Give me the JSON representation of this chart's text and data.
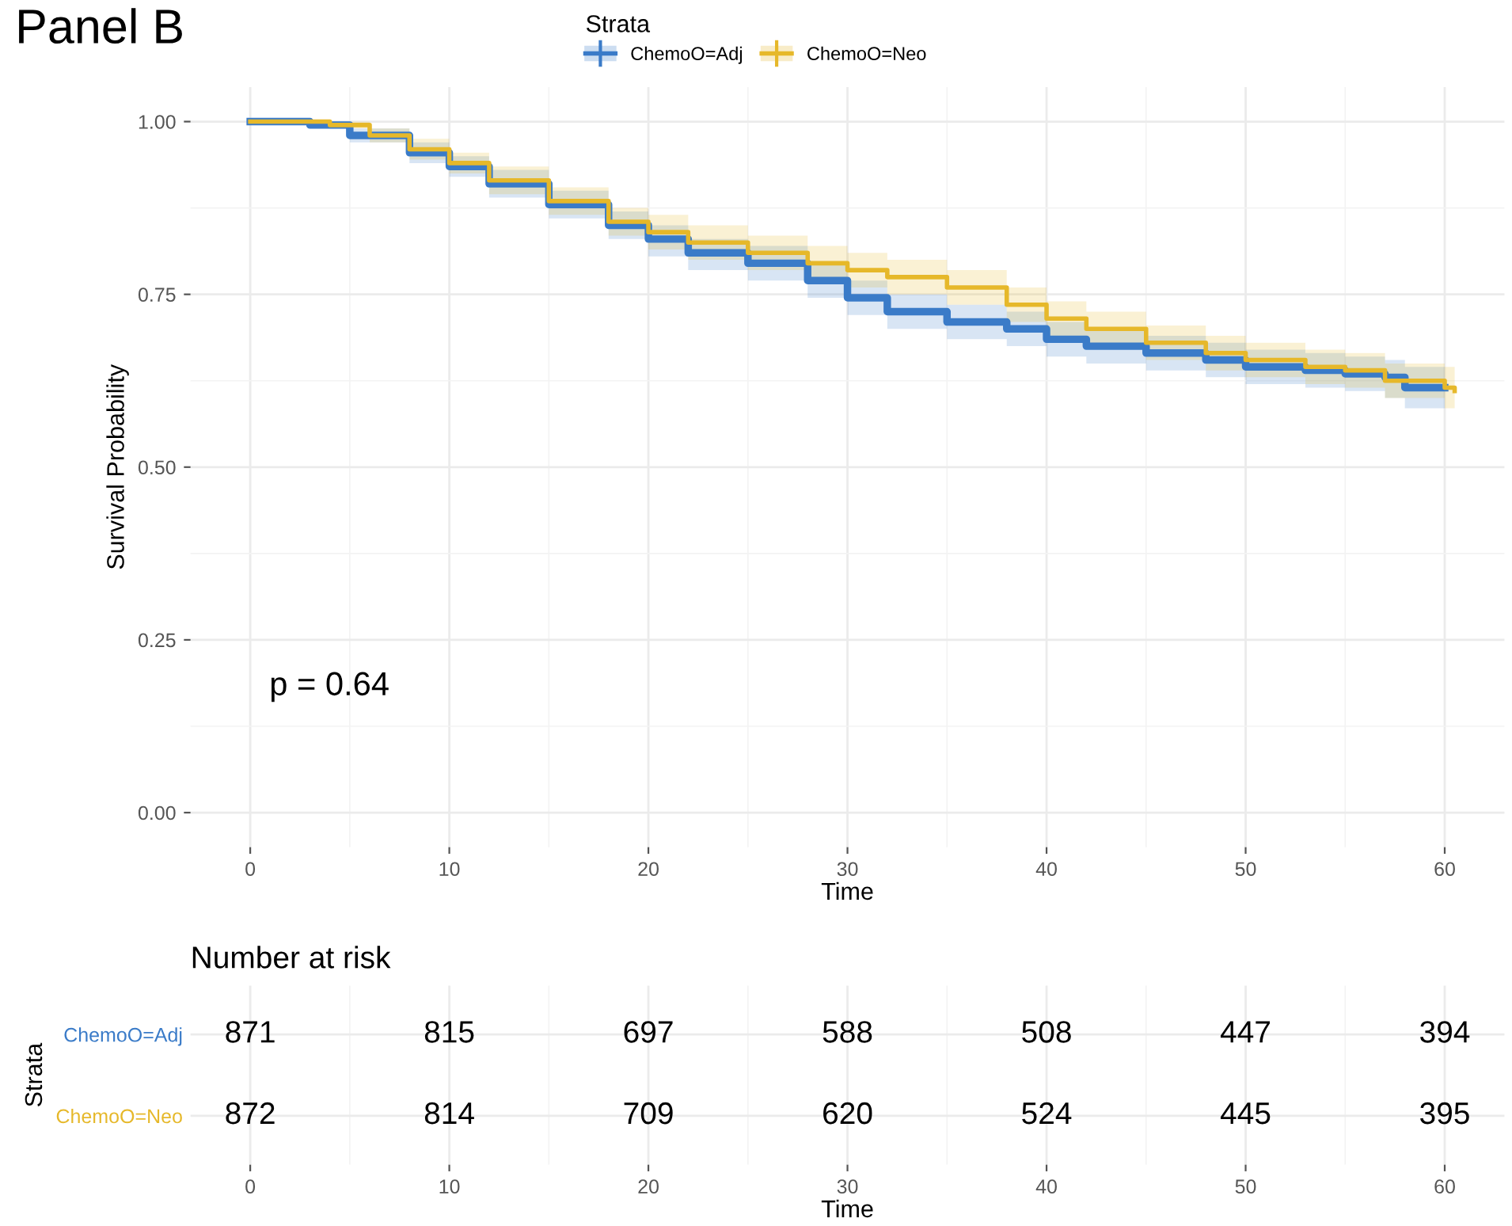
{
  "chart_data": [
    {
      "type": "step",
      "title": "Panel B",
      "xlabel": "Time",
      "ylabel": "Survival Probability",
      "legend_title": "Strata",
      "legend": "top",
      "grid": true,
      "xlim": [
        -3,
        63
      ],
      "xticks": [
        0,
        10,
        20,
        30,
        40,
        50,
        60
      ],
      "ylim": [
        -0.05,
        1.05
      ],
      "yticks": [
        {
          "value": 0,
          "label": "0.00"
        },
        {
          "value": 0.25,
          "label": "0.25"
        },
        {
          "value": 0.5,
          "label": "0.50"
        },
        {
          "value": 0.75,
          "label": "0.75"
        },
        {
          "value": 1,
          "label": "1.00"
        }
      ],
      "annotations": [
        "p = 0.64"
      ],
      "series": [
        {
          "name": "ChemoO=Adj",
          "color": "#3a7bc8",
          "x": [
            0,
            3,
            5,
            8,
            10,
            12,
            15,
            18,
            20,
            22,
            25,
            28,
            30,
            32,
            35,
            38,
            40,
            42,
            45,
            48,
            50,
            53,
            55,
            57,
            58,
            60
          ],
          "values": [
            1.0,
            0.995,
            0.98,
            0.955,
            0.935,
            0.91,
            0.88,
            0.85,
            0.83,
            0.81,
            0.795,
            0.77,
            0.745,
            0.725,
            0.71,
            0.7,
            0.685,
            0.675,
            0.665,
            0.655,
            0.645,
            0.64,
            0.635,
            0.63,
            0.615,
            0.615
          ],
          "lower": [
            1.0,
            0.99,
            0.97,
            0.94,
            0.92,
            0.89,
            0.86,
            0.83,
            0.805,
            0.785,
            0.77,
            0.745,
            0.72,
            0.7,
            0.685,
            0.675,
            0.66,
            0.65,
            0.64,
            0.63,
            0.62,
            0.615,
            0.61,
            0.6,
            0.585,
            0.585
          ],
          "upper": [
            1.0,
            1.0,
            0.99,
            0.97,
            0.95,
            0.93,
            0.9,
            0.87,
            0.85,
            0.83,
            0.82,
            0.795,
            0.77,
            0.75,
            0.735,
            0.725,
            0.71,
            0.7,
            0.69,
            0.68,
            0.67,
            0.665,
            0.66,
            0.655,
            0.645,
            0.645
          ]
        },
        {
          "name": "ChemoO=Neo",
          "color": "#e6b82a",
          "x": [
            0,
            4,
            6,
            8,
            10,
            12,
            15,
            18,
            20,
            22,
            25,
            28,
            30,
            32,
            35,
            38,
            40,
            42,
            45,
            48,
            50,
            53,
            55,
            57,
            60,
            60.5
          ],
          "values": [
            1.0,
            0.995,
            0.98,
            0.96,
            0.94,
            0.915,
            0.885,
            0.855,
            0.84,
            0.825,
            0.81,
            0.795,
            0.785,
            0.775,
            0.76,
            0.735,
            0.715,
            0.7,
            0.68,
            0.665,
            0.655,
            0.645,
            0.64,
            0.625,
            0.615,
            0.61
          ],
          "lower": [
            1.0,
            0.99,
            0.97,
            0.945,
            0.925,
            0.895,
            0.865,
            0.835,
            0.815,
            0.8,
            0.785,
            0.77,
            0.76,
            0.75,
            0.735,
            0.71,
            0.69,
            0.675,
            0.655,
            0.64,
            0.63,
            0.62,
            0.615,
            0.6,
            0.585,
            0.58
          ],
          "upper": [
            1.0,
            1.0,
            0.99,
            0.975,
            0.955,
            0.935,
            0.905,
            0.875,
            0.865,
            0.85,
            0.835,
            0.82,
            0.81,
            0.8,
            0.785,
            0.76,
            0.74,
            0.725,
            0.705,
            0.69,
            0.68,
            0.67,
            0.665,
            0.65,
            0.645,
            0.64
          ]
        }
      ]
    },
    {
      "type": "heatmap",
      "title": "Number at risk",
      "xlabel": "Time",
      "ylabel": "Strata",
      "data_labels": true,
      "grid": true,
      "categories": [
        "0",
        "10",
        "20",
        "30",
        "40",
        "50",
        "60"
      ],
      "y_categories": [
        "ChemoO=Adj",
        "ChemoO=Neo"
      ],
      "cells": [
        [
          871,
          815,
          697,
          588,
          508,
          447,
          394
        ],
        [
          872,
          814,
          709,
          620,
          524,
          445,
          395
        ]
      ]
    }
  ]
}
